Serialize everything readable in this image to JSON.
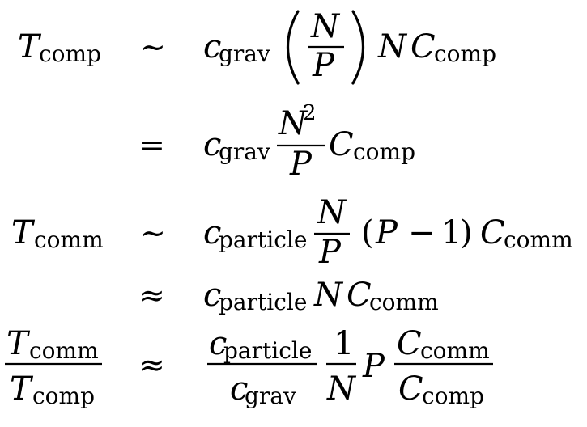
{
  "sym": {
    "T": "T",
    "N": "N",
    "P": "P",
    "C": "C",
    "c": "c",
    "one": "1",
    "two": "2",
    "minus": "−",
    "lparen": "(",
    "rparen": ")",
    "sim": "∼",
    "eq": "=",
    "approx": "≈"
  },
  "sub": {
    "comp": "comp",
    "comm": "comm",
    "grav": "grav",
    "particle": "particle"
  }
}
